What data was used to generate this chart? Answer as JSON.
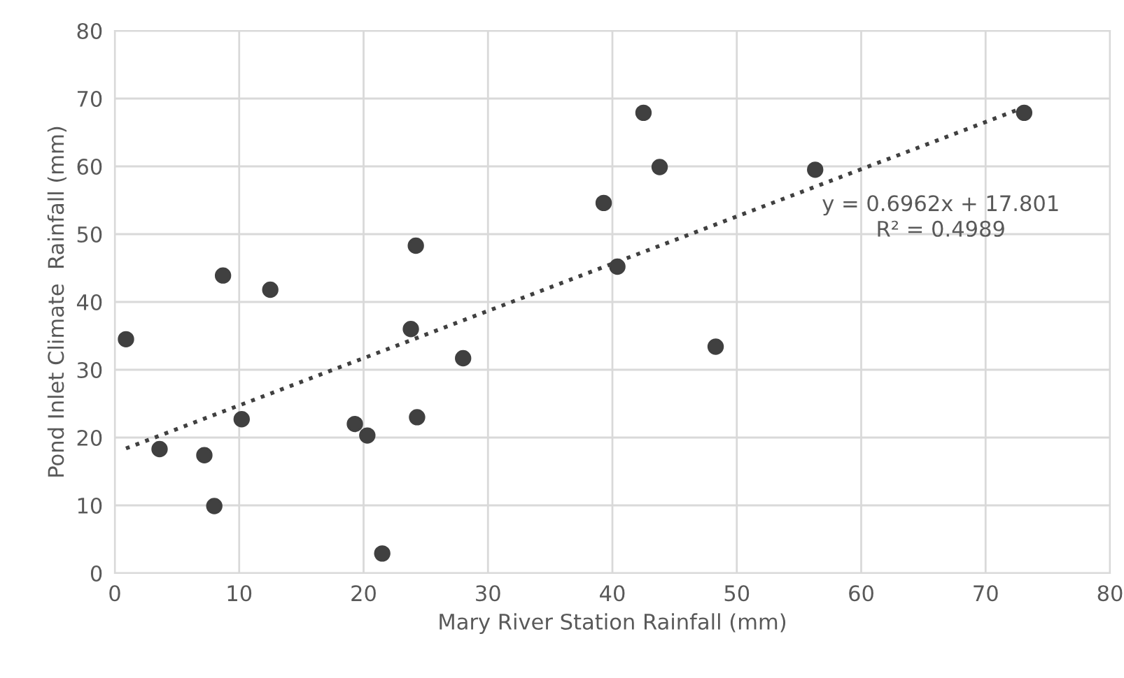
{
  "chart_data": {
    "type": "scatter",
    "xlabel": "Mary River Station Rainfall (mm)",
    "ylabel": "Pond Inlet Climate  Rainfall (mm)",
    "series": [
      {
        "color": "#404040",
        "marker": "circle",
        "x": [
          0.9,
          3.6,
          7.2,
          8.0,
          8.7,
          10.2,
          12.5,
          19.3,
          20.3,
          21.5,
          23.8,
          24.2,
          24.3,
          28.0,
          39.3,
          40.4,
          42.5,
          43.8,
          48.3,
          56.3,
          73.1
        ],
        "values": [
          34.5,
          18.3,
          17.4,
          9.9,
          43.9,
          22.7,
          41.8,
          22.0,
          20.3,
          2.9,
          36.0,
          48.3,
          23.0,
          31.7,
          54.6,
          45.2,
          67.9,
          59.9,
          33.4,
          59.5,
          67.9
        ]
      },
      {
        "type": "line",
        "color": "#404040",
        "line_style": "dotted",
        "x": [
          0.9,
          73.1
        ],
        "values": [
          18.4,
          68.7
        ]
      }
    ],
    "annotations": [
      "y = 0.6962x + 17.801\nR² = 0.4989"
    ],
    "xlim": [
      0,
      80
    ],
    "ylim": [
      0,
      80
    ],
    "xticks": [
      0,
      10,
      20,
      30,
      40,
      50,
      60,
      70,
      80
    ],
    "yticks": [
      0,
      10,
      20,
      30,
      40,
      50,
      60,
      70,
      80
    ],
    "grid": true
  }
}
